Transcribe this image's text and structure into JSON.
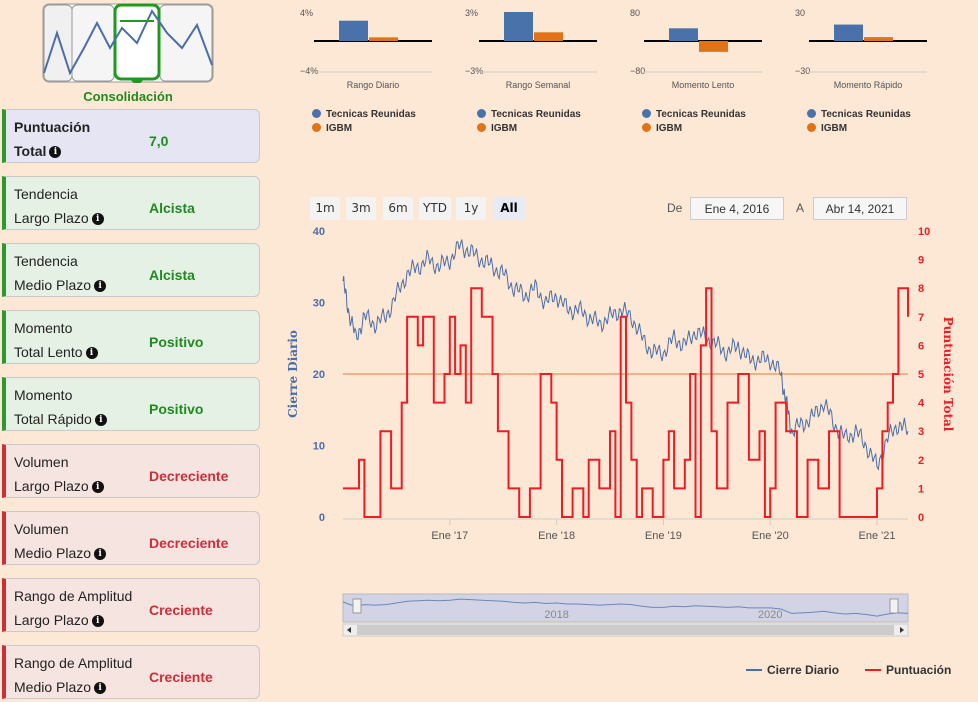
{
  "logo": {
    "label": "Consolidación"
  },
  "cards": [
    {
      "l1": "Puntuación",
      "l2": "Total",
      "value": "7,0",
      "kind": "score"
    },
    {
      "l1": "Tendencia",
      "l2": "Largo Plazo",
      "value": "Alcista",
      "kind": "green"
    },
    {
      "l1": "Tendencia",
      "l2": "Medio Plazo",
      "value": "Alcista",
      "kind": "green"
    },
    {
      "l1": "Momento",
      "l2": "Total Lento",
      "value": "Positivo",
      "kind": "green"
    },
    {
      "l1": "Momento",
      "l2": "Total Rápido",
      "value": "Positivo",
      "kind": "green"
    },
    {
      "l1": "Volumen",
      "l2": "Largo Plazo",
      "value": "Decreciente",
      "kind": "red"
    },
    {
      "l1": "Volumen",
      "l2": "Medio Plazo",
      "value": "Decreciente",
      "kind": "red"
    },
    {
      "l1": "Rango de Amplitud",
      "l2": "Largo Plazo",
      "value": "Creciente",
      "kind": "red"
    },
    {
      "l1": "Rango de Amplitud",
      "l2": "Medio Plazo",
      "value": "Creciente",
      "kind": "red"
    }
  ],
  "info_glyph": "i",
  "colors": {
    "blue": "#4a72aa",
    "orange": "#e07318",
    "red": "#ee1c25",
    "green": "#1f8a1f",
    "line_blue": "#4a6ea8"
  },
  "range_buttons": [
    "1m",
    "3m",
    "6m",
    "YTD",
    "1y",
    "All"
  ],
  "range_selected": "All",
  "range": {
    "from_label": "De",
    "from": "Ene 4, 2016",
    "to_label": "A",
    "to": "Abr 14, 2021"
  },
  "legend": {
    "blue": "Cierre Diario",
    "red": "Puntuación"
  },
  "chart_data": [
    {
      "type": "bar",
      "title": "Rango Diario",
      "categories": [
        "Tecnicas Reunidas",
        "IGBM"
      ],
      "values": [
        2.8,
        0.5
      ],
      "ylim": [
        -4,
        4
      ],
      "ytick_labels": [
        "4%",
        "−4%"
      ]
    },
    {
      "type": "bar",
      "title": "Rango Semanal",
      "categories": [
        "Tecnicas Reunidas",
        "IGBM"
      ],
      "values": [
        3.0,
        0.9
      ],
      "ylim": [
        -3,
        3
      ],
      "ytick_labels": [
        "3%",
        "−3%"
      ]
    },
    {
      "type": "bar",
      "title": "Momento Lento",
      "categories": [
        "Tecnicas Reunidas",
        "IGBM"
      ],
      "values": [
        35,
        -30
      ],
      "ylim": [
        -80,
        80
      ],
      "ytick_labels": [
        "80",
        "−80"
      ]
    },
    {
      "type": "bar",
      "title": "Momento Rápido",
      "categories": [
        "Tecnicas Reunidas",
        "IGBM"
      ],
      "values": [
        17,
        4
      ],
      "ylim": [
        -30,
        30
      ],
      "ytick_labels": [
        "30",
        "−30"
      ]
    },
    {
      "type": "line",
      "xlabels": [
        "Ene '17",
        "Ene '18",
        "Ene '19",
        "Ene '20",
        "Ene '21"
      ],
      "xlabel_years": [
        2017,
        2018,
        2019,
        2020,
        2021
      ],
      "xlim": [
        2016.0,
        2021.29
      ],
      "yleft": {
        "label": "Cierre Diario",
        "lim": [
          0,
          40
        ],
        "ticks": [
          0,
          10,
          20,
          30,
          40
        ]
      },
      "yright": {
        "label": "Puntuación Total",
        "lim": [
          0,
          10
        ],
        "ticks": [
          0,
          1,
          2,
          3,
          4,
          5,
          6,
          7,
          8,
          9,
          10
        ]
      },
      "threshold": 5,
      "series": [
        {
          "name": "Cierre Diario",
          "axis": "left",
          "x": [
            2016.0,
            2016.05,
            2016.12,
            2016.2,
            2016.3,
            2016.4,
            2016.5,
            2016.6,
            2016.7,
            2016.8,
            2016.9,
            2017.0,
            2017.1,
            2017.2,
            2017.3,
            2017.4,
            2017.5,
            2017.6,
            2017.7,
            2017.8,
            2017.9,
            2018.0,
            2018.1,
            2018.2,
            2018.3,
            2018.4,
            2018.5,
            2018.6,
            2018.7,
            2018.8,
            2018.9,
            2019.0,
            2019.1,
            2019.2,
            2019.3,
            2019.4,
            2019.5,
            2019.6,
            2019.7,
            2019.8,
            2019.9,
            2020.0,
            2020.1,
            2020.15,
            2020.2,
            2020.3,
            2020.4,
            2020.5,
            2020.6,
            2020.7,
            2020.8,
            2020.9,
            2021.0,
            2021.1,
            2021.2,
            2021.29
          ],
          "values": [
            33,
            29,
            25,
            28,
            27,
            28,
            31,
            34,
            35,
            36,
            35,
            36,
            38,
            37,
            36,
            35,
            34,
            32,
            31,
            32,
            30,
            31,
            29,
            29,
            28,
            27,
            28,
            29,
            28,
            25,
            23,
            23,
            25,
            24,
            26,
            25,
            24,
            23,
            24,
            22,
            22,
            22,
            20,
            16,
            12,
            13,
            14,
            16,
            13,
            11,
            12,
            10,
            7,
            11,
            13,
            12
          ]
        },
        {
          "name": "Puntuación",
          "axis": "right",
          "x": [
            2016.0,
            2016.15,
            2016.2,
            2016.35,
            2016.45,
            2016.55,
            2016.6,
            2016.7,
            2016.75,
            2016.85,
            2016.95,
            2017.0,
            2017.05,
            2017.1,
            2017.15,
            2017.2,
            2017.3,
            2017.4,
            2017.45,
            2017.55,
            2017.65,
            2017.75,
            2017.85,
            2017.95,
            2018.0,
            2018.05,
            2018.15,
            2018.25,
            2018.3,
            2018.4,
            2018.5,
            2018.55,
            2018.6,
            2018.65,
            2018.7,
            2018.75,
            2018.8,
            2018.9,
            2019.0,
            2019.05,
            2019.1,
            2019.2,
            2019.25,
            2019.3,
            2019.35,
            2019.4,
            2019.45,
            2019.5,
            2019.6,
            2019.7,
            2019.8,
            2019.9,
            2019.95,
            2020.0,
            2020.05,
            2020.15,
            2020.25,
            2020.35,
            2020.45,
            2020.55,
            2020.65,
            2020.75,
            2020.85,
            2020.95,
            2021.0,
            2021.05,
            2021.1,
            2021.15,
            2021.2,
            2021.29
          ],
          "values": [
            1,
            2,
            0,
            3,
            1,
            4,
            7,
            6,
            7,
            4,
            5,
            7,
            5,
            6,
            4,
            8,
            7,
            5,
            3,
            1,
            0,
            1,
            5,
            4,
            2,
            0,
            1,
            0,
            2,
            1,
            3,
            0,
            7,
            4,
            2,
            0,
            1,
            0,
            2,
            3,
            1,
            2,
            5,
            0,
            6,
            8,
            3,
            1,
            4,
            5,
            2,
            3,
            0,
            1,
            4,
            3,
            0,
            2,
            1,
            3,
            0,
            0,
            0,
            0,
            1,
            3,
            4,
            5,
            8,
            7
          ]
        }
      ],
      "navigator": {
        "labels": [
          "2018",
          "2020"
        ],
        "label_years": [
          2018,
          2020
        ]
      }
    }
  ]
}
